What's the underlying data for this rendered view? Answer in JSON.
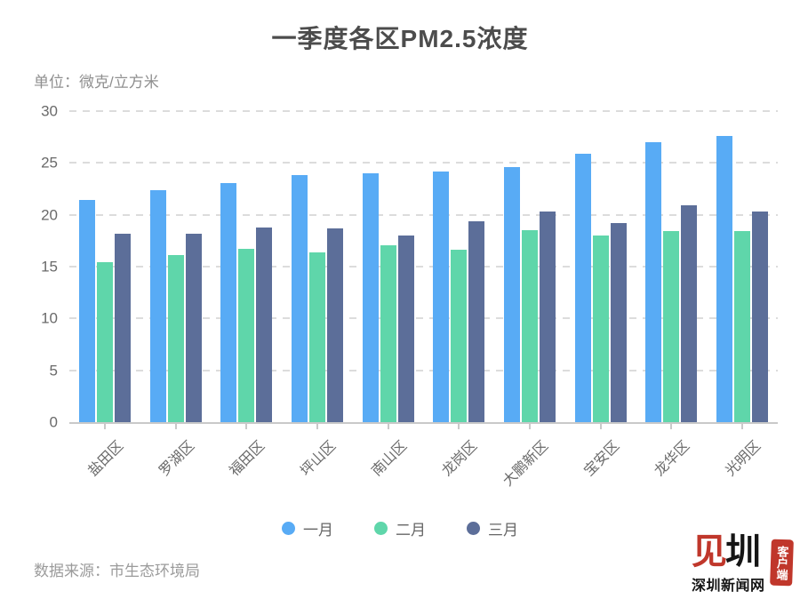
{
  "header": {
    "title": "一季度各区PM2.5浓度",
    "unit_label": "单位：微克/立方米"
  },
  "chart_data": {
    "type": "bar",
    "title": "一季度各区PM2.5浓度",
    "unit": "微克/立方米",
    "categories": [
      "盐田区",
      "罗湖区",
      "福田区",
      "坪山区",
      "南山区",
      "龙岗区",
      "大鹏新区",
      "宝安区",
      "龙华区",
      "光明区"
    ],
    "series": [
      {
        "key": "january",
        "name": "一月",
        "color": "#58ABF5",
        "values": [
          21.4,
          22.4,
          23.1,
          23.8,
          24.0,
          24.2,
          24.6,
          25.9,
          27.0,
          27.6
        ]
      },
      {
        "key": "february",
        "name": "二月",
        "color": "#5FD6AA",
        "values": [
          15.4,
          16.1,
          16.7,
          16.4,
          17.1,
          16.6,
          18.5,
          18.0,
          18.4,
          18.4
        ]
      },
      {
        "key": "march",
        "name": "三月",
        "color": "#5C6E99",
        "values": [
          18.2,
          18.2,
          18.8,
          18.7,
          18.0,
          19.4,
          20.3,
          19.2,
          20.9,
          20.3
        ]
      }
    ],
    "ylim": [
      0,
      30
    ],
    "y_ticks": [
      0,
      5,
      10,
      15,
      20,
      25,
      30
    ],
    "grid": true,
    "gridline_style": "dashed",
    "legend_position": "bottom",
    "xlabel": "",
    "ylabel": ""
  },
  "footer": {
    "source": "数据来源：市生态环境局",
    "logo": {
      "glyph_red": "见",
      "glyph_black": "圳",
      "subtitle": "深圳新闻网",
      "seal_text": "客户端",
      "red": "#C0372B"
    }
  }
}
